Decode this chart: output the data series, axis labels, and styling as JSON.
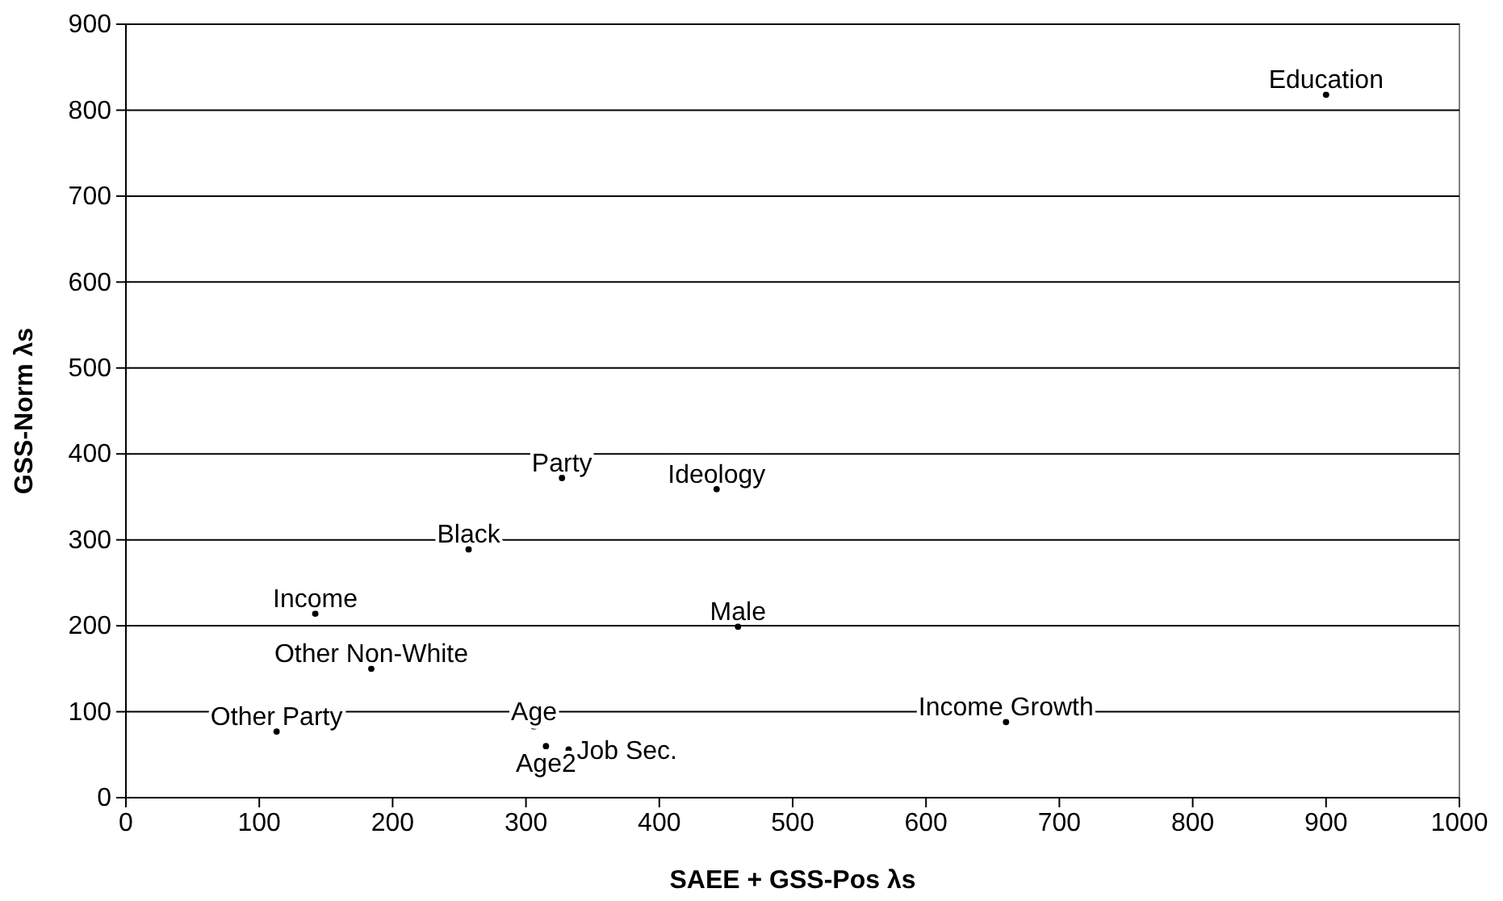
{
  "chart_data": {
    "type": "scatter",
    "xlabel": "SAEE + GSS-Pos λs",
    "ylabel": "GSS-Norm λs",
    "x": [
      900,
      327,
      443,
      257,
      142,
      459,
      184,
      113,
      660,
      306,
      315,
      332
    ],
    "values": [
      818,
      372,
      359,
      289,
      214,
      199,
      150,
      77,
      88,
      83,
      60,
      56
    ],
    "value_labels": [
      "Education",
      "Party",
      "Ideology",
      "Black",
      "Income",
      "Male",
      "Other Non-White",
      "Other Party",
      "Income Growth",
      "Age",
      "Age2",
      "Job Sec."
    ],
    "marker": "circle",
    "color": "#000000",
    "xlim": [
      0,
      1000
    ],
    "xticks": [
      0,
      100,
      200,
      300,
      400,
      500,
      600,
      700,
      800,
      900,
      1000
    ],
    "ylim": [
      0,
      900
    ],
    "yticks": [
      0,
      100,
      200,
      300,
      400,
      500,
      600,
      700,
      800,
      900
    ],
    "grid": "y"
  }
}
